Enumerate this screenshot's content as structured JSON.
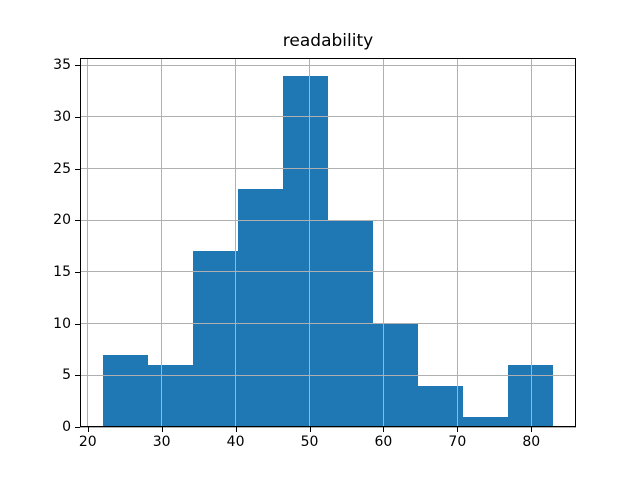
{
  "figure": {
    "background": "#ffffff"
  },
  "chart_data": {
    "type": "bar",
    "subtype": "histogram",
    "title": "readability",
    "xlabel": "",
    "ylabel": "",
    "bin_edges": [
      22,
      28.1,
      34.2,
      40.3,
      46.4,
      52.5,
      58.6,
      64.7,
      70.8,
      76.9,
      83
    ],
    "counts": [
      7,
      6,
      17,
      23,
      34,
      20,
      10,
      4,
      1,
      6
    ],
    "xlim": [
      18.95,
      86.05
    ],
    "ylim": [
      0,
      35.7
    ],
    "x_ticks": [
      20,
      30,
      40,
      50,
      60,
      70,
      80
    ],
    "y_ticks": [
      0,
      5,
      10,
      15,
      20,
      25,
      30,
      35
    ],
    "grid": true,
    "legend": false,
    "bar_color": "#1f77b4",
    "grid_color": "#b0b0b0",
    "spine_color": "#000000",
    "tick_label_color": "#000000",
    "title_color": "#000000"
  }
}
